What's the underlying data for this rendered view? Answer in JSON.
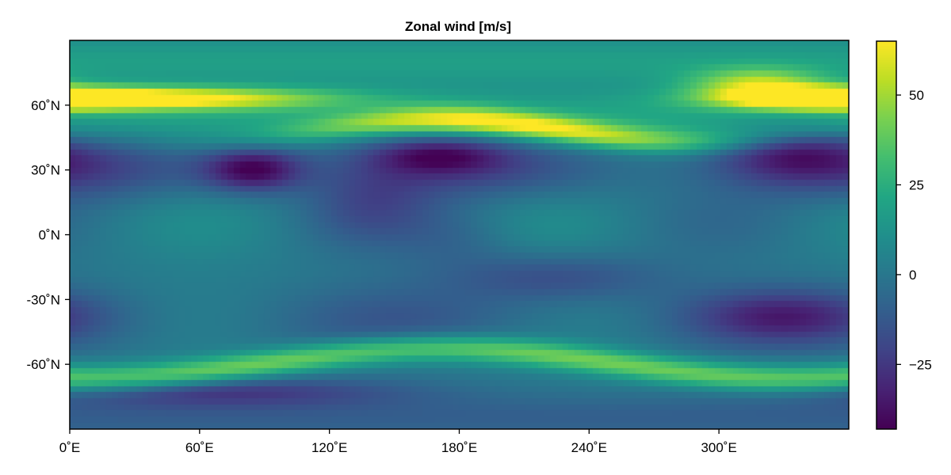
{
  "chart_data": {
    "type": "heatmap",
    "title": "Zonal wind [m/s]",
    "xlabel": "",
    "ylabel": "",
    "xlim": [
      0,
      360
    ],
    "ylim": [
      -90,
      90
    ],
    "x_ticks": [
      {
        "value": 0,
        "label": "0˚E"
      },
      {
        "value": 60,
        "label": "60˚E"
      },
      {
        "value": 120,
        "label": "120˚E"
      },
      {
        "value": 180,
        "label": "180˚E"
      },
      {
        "value": 240,
        "label": "240˚E"
      },
      {
        "value": 300,
        "label": "300˚E"
      }
    ],
    "y_ticks": [
      {
        "value": 60,
        "label": "60˚N"
      },
      {
        "value": 30,
        "label": "30˚N"
      },
      {
        "value": 0,
        "label": "0˚N"
      },
      {
        "value": -30,
        "label": "-30˚N"
      },
      {
        "value": -60,
        "label": "-60˚N"
      }
    ],
    "colorbar": {
      "colormap": "viridis",
      "range": [
        -43,
        65
      ],
      "ticks": [
        {
          "value": 50,
          "label": "50"
        },
        {
          "value": 25,
          "label": "25"
        },
        {
          "value": 0,
          "label": "0"
        },
        {
          "value": -25,
          "label": "−25"
        }
      ]
    },
    "grid": false,
    "features": [
      {
        "kind": "jet",
        "lat_center": 63,
        "amplitude": 62,
        "note": "northern jet at 0–100˚E and 320–360˚E"
      },
      {
        "kind": "jet",
        "lat_center": 50,
        "amplitude": 58,
        "note": "northern jet branch dipping to ~47˚N near 260˚E"
      },
      {
        "kind": "jet",
        "lat_center": -60,
        "amplitude": 40,
        "note": "southern jet meandering between -52˚N and -68˚N"
      },
      {
        "kind": "minimum",
        "lon": 85,
        "lat": 30,
        "value": -40
      },
      {
        "kind": "minimum",
        "lon": 170,
        "lat": 37,
        "value": -30
      },
      {
        "kind": "minimum",
        "lon": 335,
        "lat": 38,
        "value": -28
      },
      {
        "kind": "minimum",
        "lon": 330,
        "lat": -38,
        "value": -22
      }
    ]
  }
}
